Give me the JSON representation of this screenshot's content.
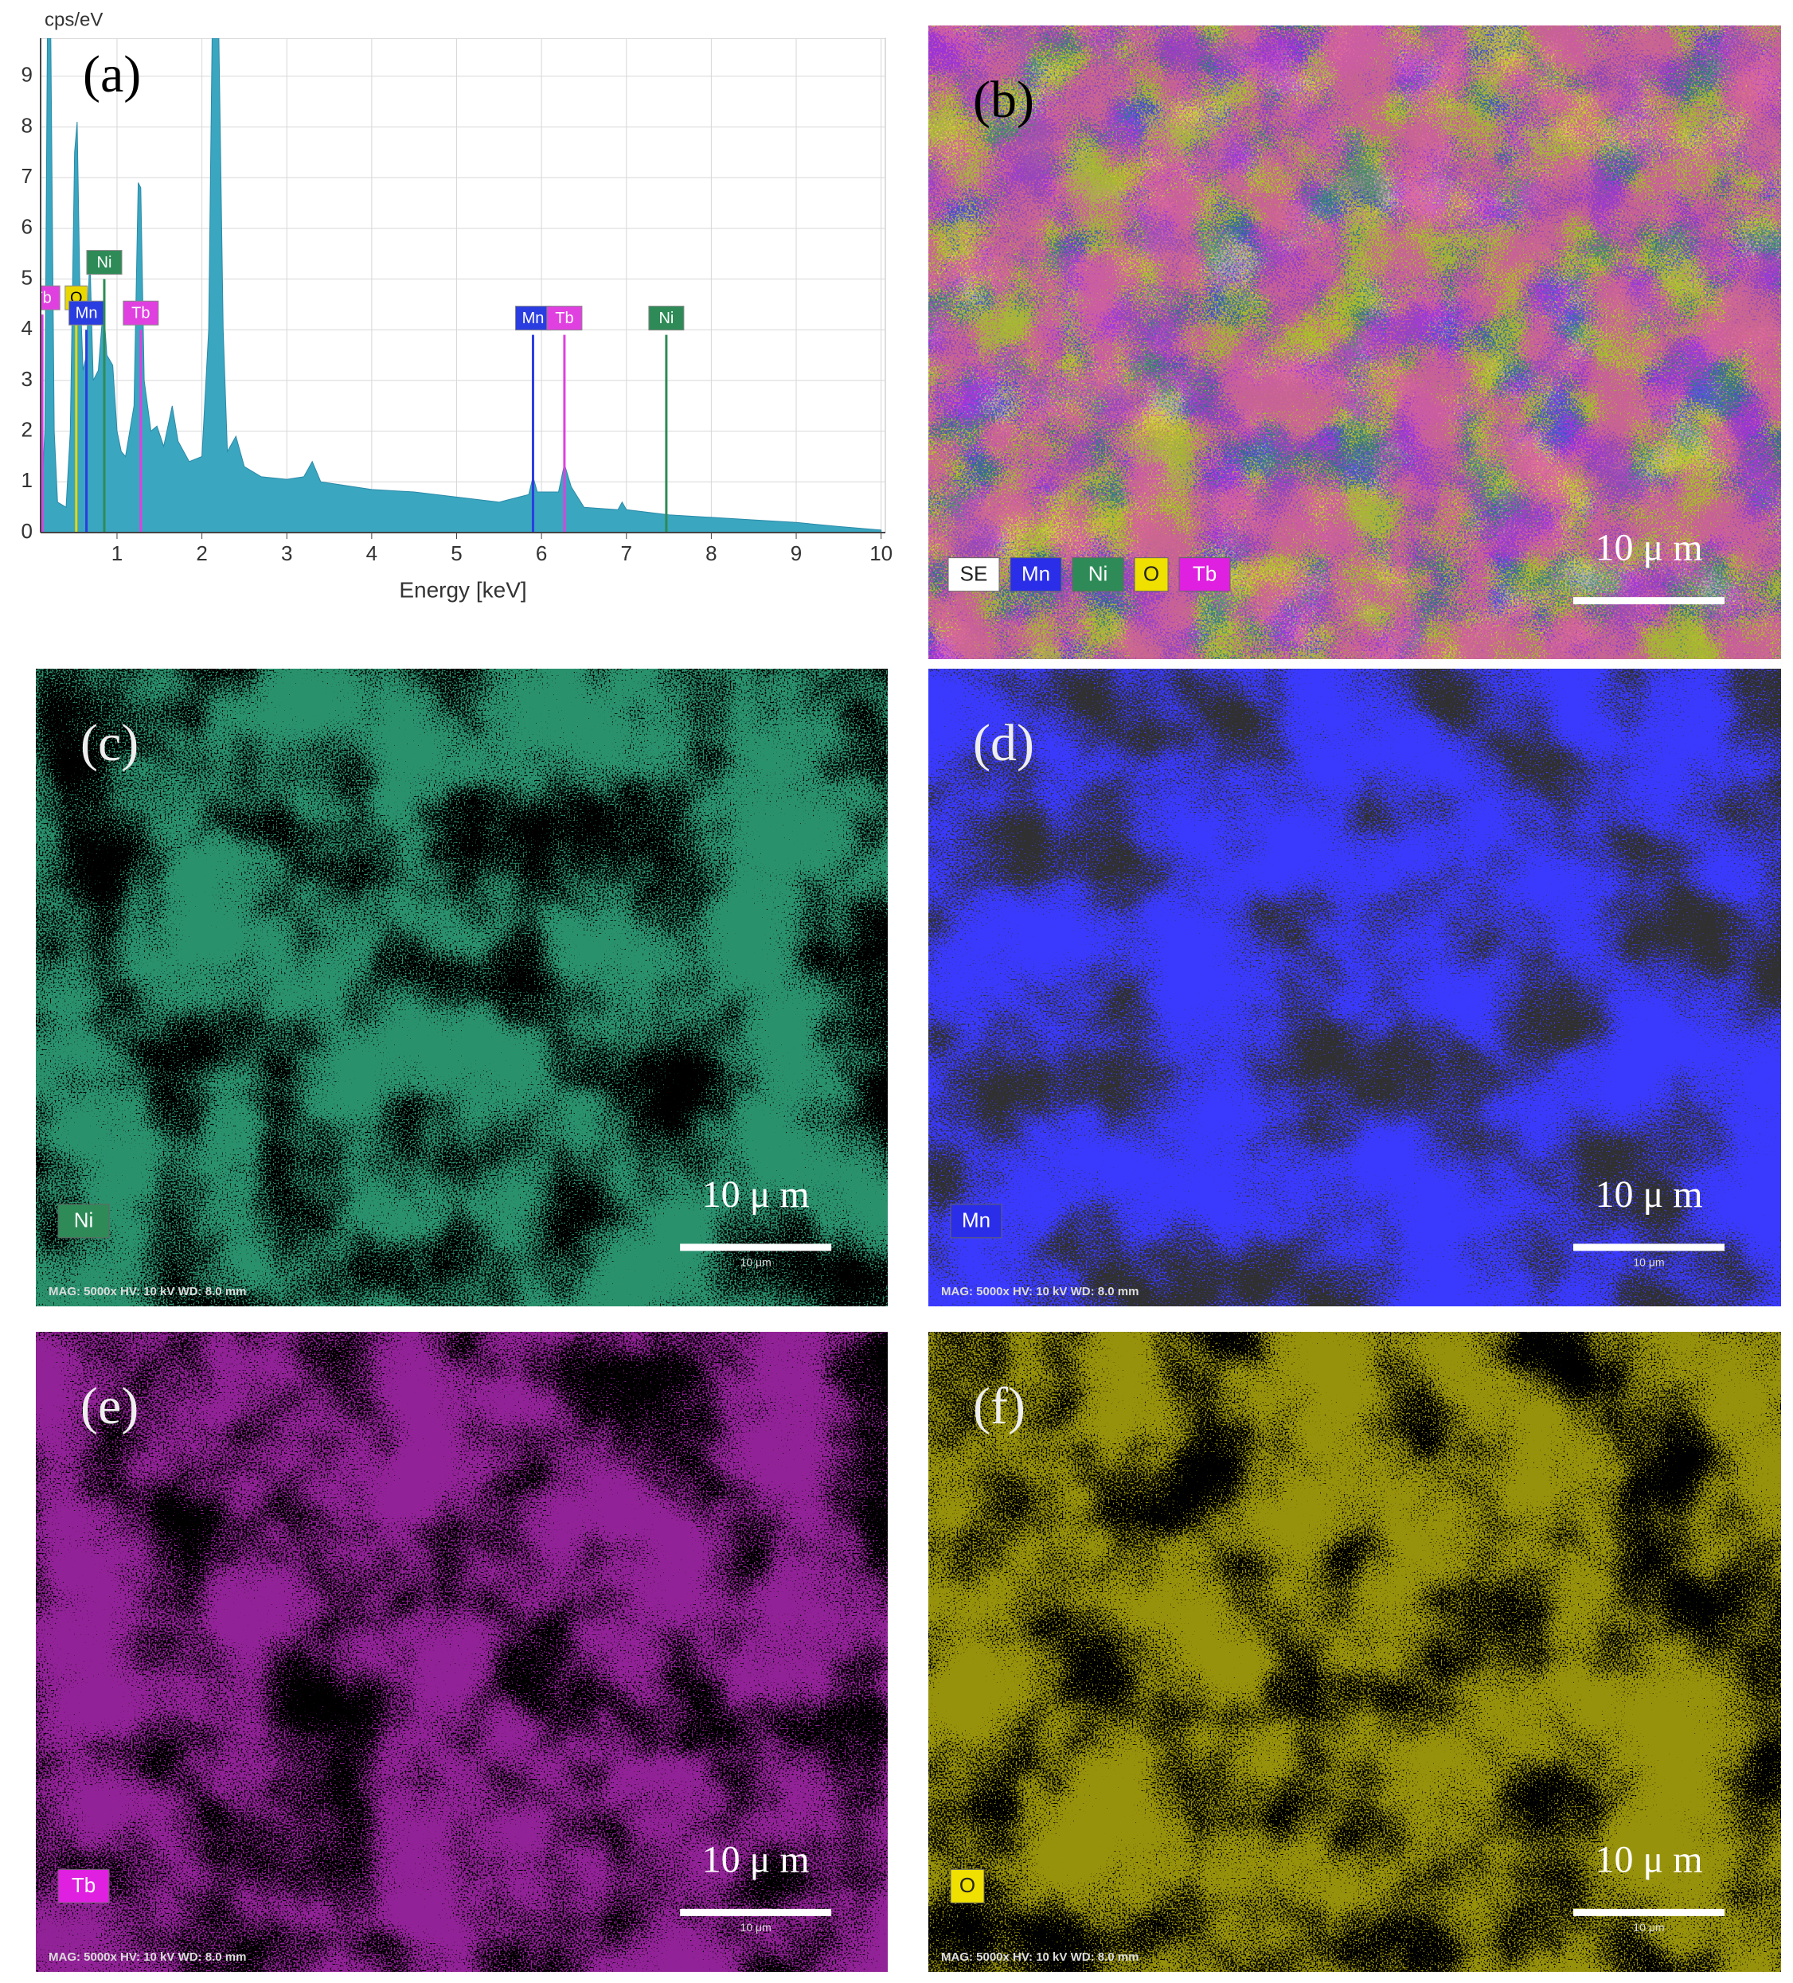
{
  "chart_data": {
    "type": "area",
    "label": "(a)",
    "ylabel": "cps/eV",
    "xlabel": "Energy [keV]",
    "color": "#3aa6c0",
    "grid": true,
    "xlim": [
      0.1,
      10.05
    ],
    "ylim": [
      0,
      9.75
    ],
    "xticks": [
      1,
      2,
      3,
      4,
      5,
      6,
      7,
      8,
      9,
      10
    ],
    "yticks": [
      0,
      1,
      2,
      3,
      4,
      5,
      6,
      7,
      8,
      9
    ],
    "x": [
      0.1,
      0.15,
      0.18,
      0.22,
      0.26,
      0.3,
      0.4,
      0.45,
      0.5,
      0.53,
      0.56,
      0.6,
      0.64,
      0.68,
      0.72,
      0.78,
      0.84,
      0.88,
      0.95,
      1.0,
      1.05,
      1.1,
      1.2,
      1.25,
      1.28,
      1.32,
      1.4,
      1.47,
      1.55,
      1.65,
      1.72,
      1.85,
      2.0,
      2.08,
      2.12,
      2.2,
      2.25,
      2.3,
      2.4,
      2.5,
      2.7,
      3.0,
      3.2,
      3.3,
      3.4,
      4.0,
      4.5,
      5.0,
      5.5,
      5.85,
      5.9,
      5.95,
      6.2,
      6.27,
      6.35,
      6.5,
      6.9,
      6.95,
      7.0,
      7.5,
      8.0,
      8.5,
      9.0,
      9.5,
      10.0
    ],
    "values": [
      0.3,
      2,
      9.75,
      9.75,
      2,
      0.6,
      0.5,
      2,
      7.5,
      8.1,
      5,
      3.2,
      3.5,
      5.5,
      3,
      3.2,
      4.5,
      3.5,
      3.3,
      2,
      1.6,
      1.5,
      2.5,
      6.9,
      6.8,
      3,
      2,
      2.1,
      1.7,
      2.5,
      1.8,
      1.4,
      1.5,
      4,
      9.75,
      9.75,
      4,
      1.6,
      1.9,
      1.3,
      1.1,
      1.05,
      1.1,
      1.4,
      1.0,
      0.85,
      0.8,
      0.7,
      0.6,
      0.75,
      1.1,
      0.8,
      0.8,
      1.35,
      0.9,
      0.5,
      0.45,
      0.6,
      0.45,
      0.35,
      0.3,
      0.25,
      0.2,
      0.12,
      0.05
    ],
    "markers": [
      {
        "label": "Tb",
        "x": 0.12,
        "height": 4.3,
        "color": "#e040e0"
      },
      {
        "label": "O",
        "x": 0.52,
        "height": 4.3,
        "color": "#e8d800"
      },
      {
        "label": "Mn",
        "x": 0.64,
        "height": 4.0,
        "color": "#2a3de0"
      },
      {
        "label": "Ni",
        "x": 0.85,
        "height": 5.0,
        "color": "#2e8b57"
      },
      {
        "label": "Tb",
        "x": 1.28,
        "height": 4.0,
        "color": "#e040e0"
      },
      {
        "label": "Mn",
        "x": 5.9,
        "height": 3.9,
        "color": "#2a3de0"
      },
      {
        "label": "Tb",
        "x": 6.27,
        "height": 3.9,
        "color": "#e040e0"
      },
      {
        "label": "Ni",
        "x": 7.47,
        "height": 3.9,
        "color": "#2e8b57"
      }
    ]
  },
  "panels": [
    {
      "label": "(b)",
      "kind": "overlay",
      "scale": "10 μ m",
      "chips": [
        {
          "text": "SE",
          "color": "#ffffff"
        },
        {
          "text": "Mn",
          "color": "#2a2ee8"
        },
        {
          "text": "Ni",
          "color": "#2e8b57"
        },
        {
          "text": "O",
          "color": "#f0e000"
        },
        {
          "text": "Tb",
          "color": "#e020e0"
        }
      ]
    },
    {
      "label": "(c)",
      "kind": "map",
      "color": "#3ccf9c",
      "background": "#000000",
      "scale": "10 μ m",
      "bar": "10 μm",
      "footer": "MAG: 5000x   HV: 10 kV   WD: 8.0 mm",
      "chips": [
        {
          "text": "Ni",
          "color": "#2e8b57"
        }
      ]
    },
    {
      "label": "(d)",
      "kind": "map",
      "color": "#3a3aff",
      "background": "#303030",
      "scale": "10 μ m",
      "bar": "10 μm",
      "footer": "MAG: 5000x   HV: 10 kV   WD: 8.0 mm",
      "chips": [
        {
          "text": "Mn",
          "color": "#2a2ee8"
        }
      ]
    },
    {
      "label": "(e)",
      "kind": "map",
      "color": "#d030d8",
      "background": "#000000",
      "scale": "10 μ m",
      "bar": "10 μm",
      "footer": "MAG: 5000x   HV: 10 kV   WD: 8.0 mm",
      "chips": [
        {
          "text": "Tb",
          "color": "#e020e0"
        }
      ]
    },
    {
      "label": "(f)",
      "kind": "map",
      "color": "#d8d010",
      "background": "#000000",
      "scale": "10 μ m",
      "bar": "10 μm",
      "footer": "MAG: 5000x   HV: 10 kV   WD: 8.0 mm",
      "chips": [
        {
          "text": "O",
          "color": "#f0e000"
        }
      ]
    }
  ]
}
